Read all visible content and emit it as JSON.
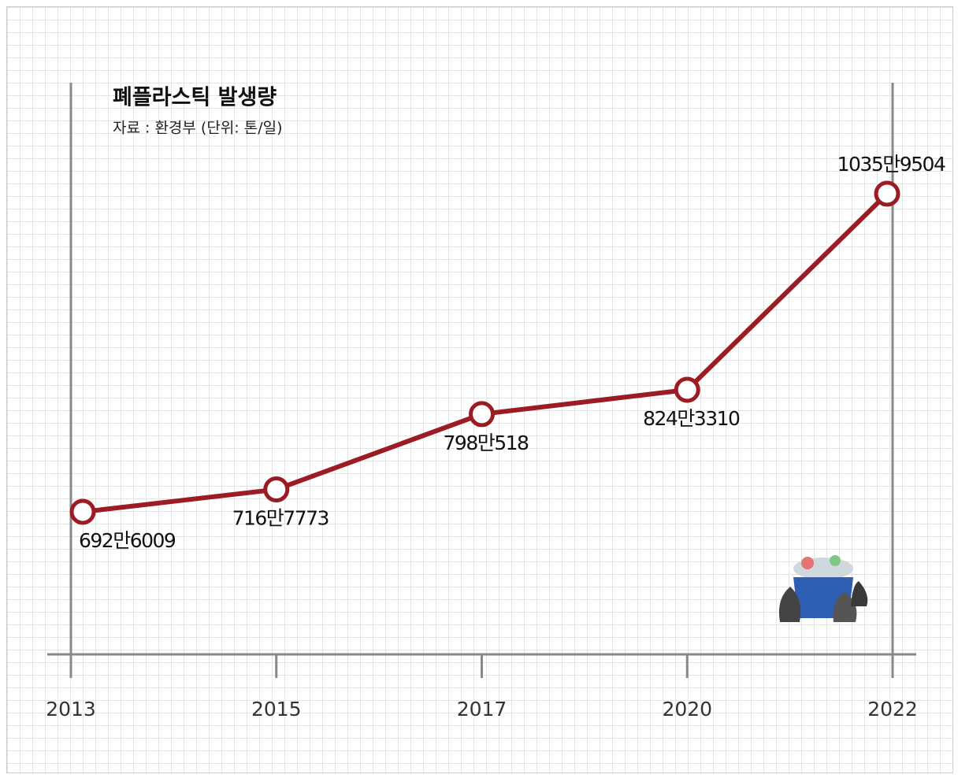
{
  "chart_data": {
    "type": "line",
    "title": "폐플라스틱 발생량",
    "subtitle": "자료 : 환경부 (단위: 톤/일)",
    "categories": [
      "2013",
      "2015",
      "2017",
      "2020",
      "2022"
    ],
    "values": [
      6926009,
      7167773,
      7980518,
      8243310,
      10359504
    ],
    "value_labels": [
      "692만6009",
      "716만7773",
      "798만518",
      "824만3310",
      "1035만9504"
    ],
    "color": "#9b1c22"
  }
}
